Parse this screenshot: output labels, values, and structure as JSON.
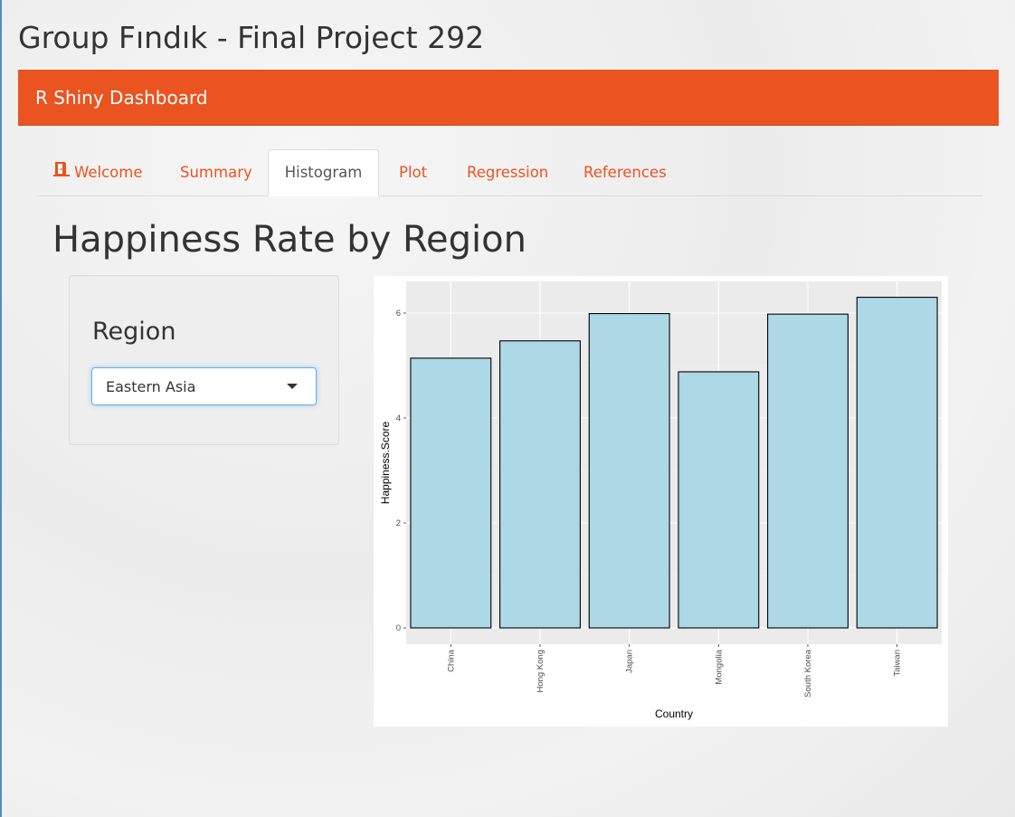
{
  "app": {
    "title": "Group Fındık - Final Project 292"
  },
  "navbar": {
    "brand": "R Shiny Dashboard",
    "accent_color": "#e95420"
  },
  "tabs": [
    {
      "label": "Welcome",
      "icon": "door-open-icon",
      "active": false
    },
    {
      "label": "Summary",
      "active": false
    },
    {
      "label": "Histogram",
      "active": true
    },
    {
      "label": "Plot",
      "active": false
    },
    {
      "label": "Regression",
      "active": false
    },
    {
      "label": "References",
      "active": false
    }
  ],
  "main": {
    "heading": "Happiness Rate by Region"
  },
  "sidebar": {
    "region_label": "Region",
    "region_value": "Eastern Asia",
    "dropdown_icon": "caret-down-icon"
  },
  "chart_data": {
    "type": "bar",
    "categories": [
      "China",
      "Hong Kong",
      "Japan",
      "Mongolia",
      "South Korea",
      "Taiwan"
    ],
    "values": [
      5.14,
      5.47,
      5.99,
      4.88,
      5.98,
      6.3
    ],
    "xlabel": "Country",
    "ylabel": "Happiness.Score",
    "ylim": [
      0,
      6.6
    ],
    "yticks": [
      0,
      2,
      4,
      6
    ],
    "grid": true,
    "panel_color": "#ebebeb",
    "bar_fill": "#add8e6",
    "bar_stroke": "#000000"
  }
}
